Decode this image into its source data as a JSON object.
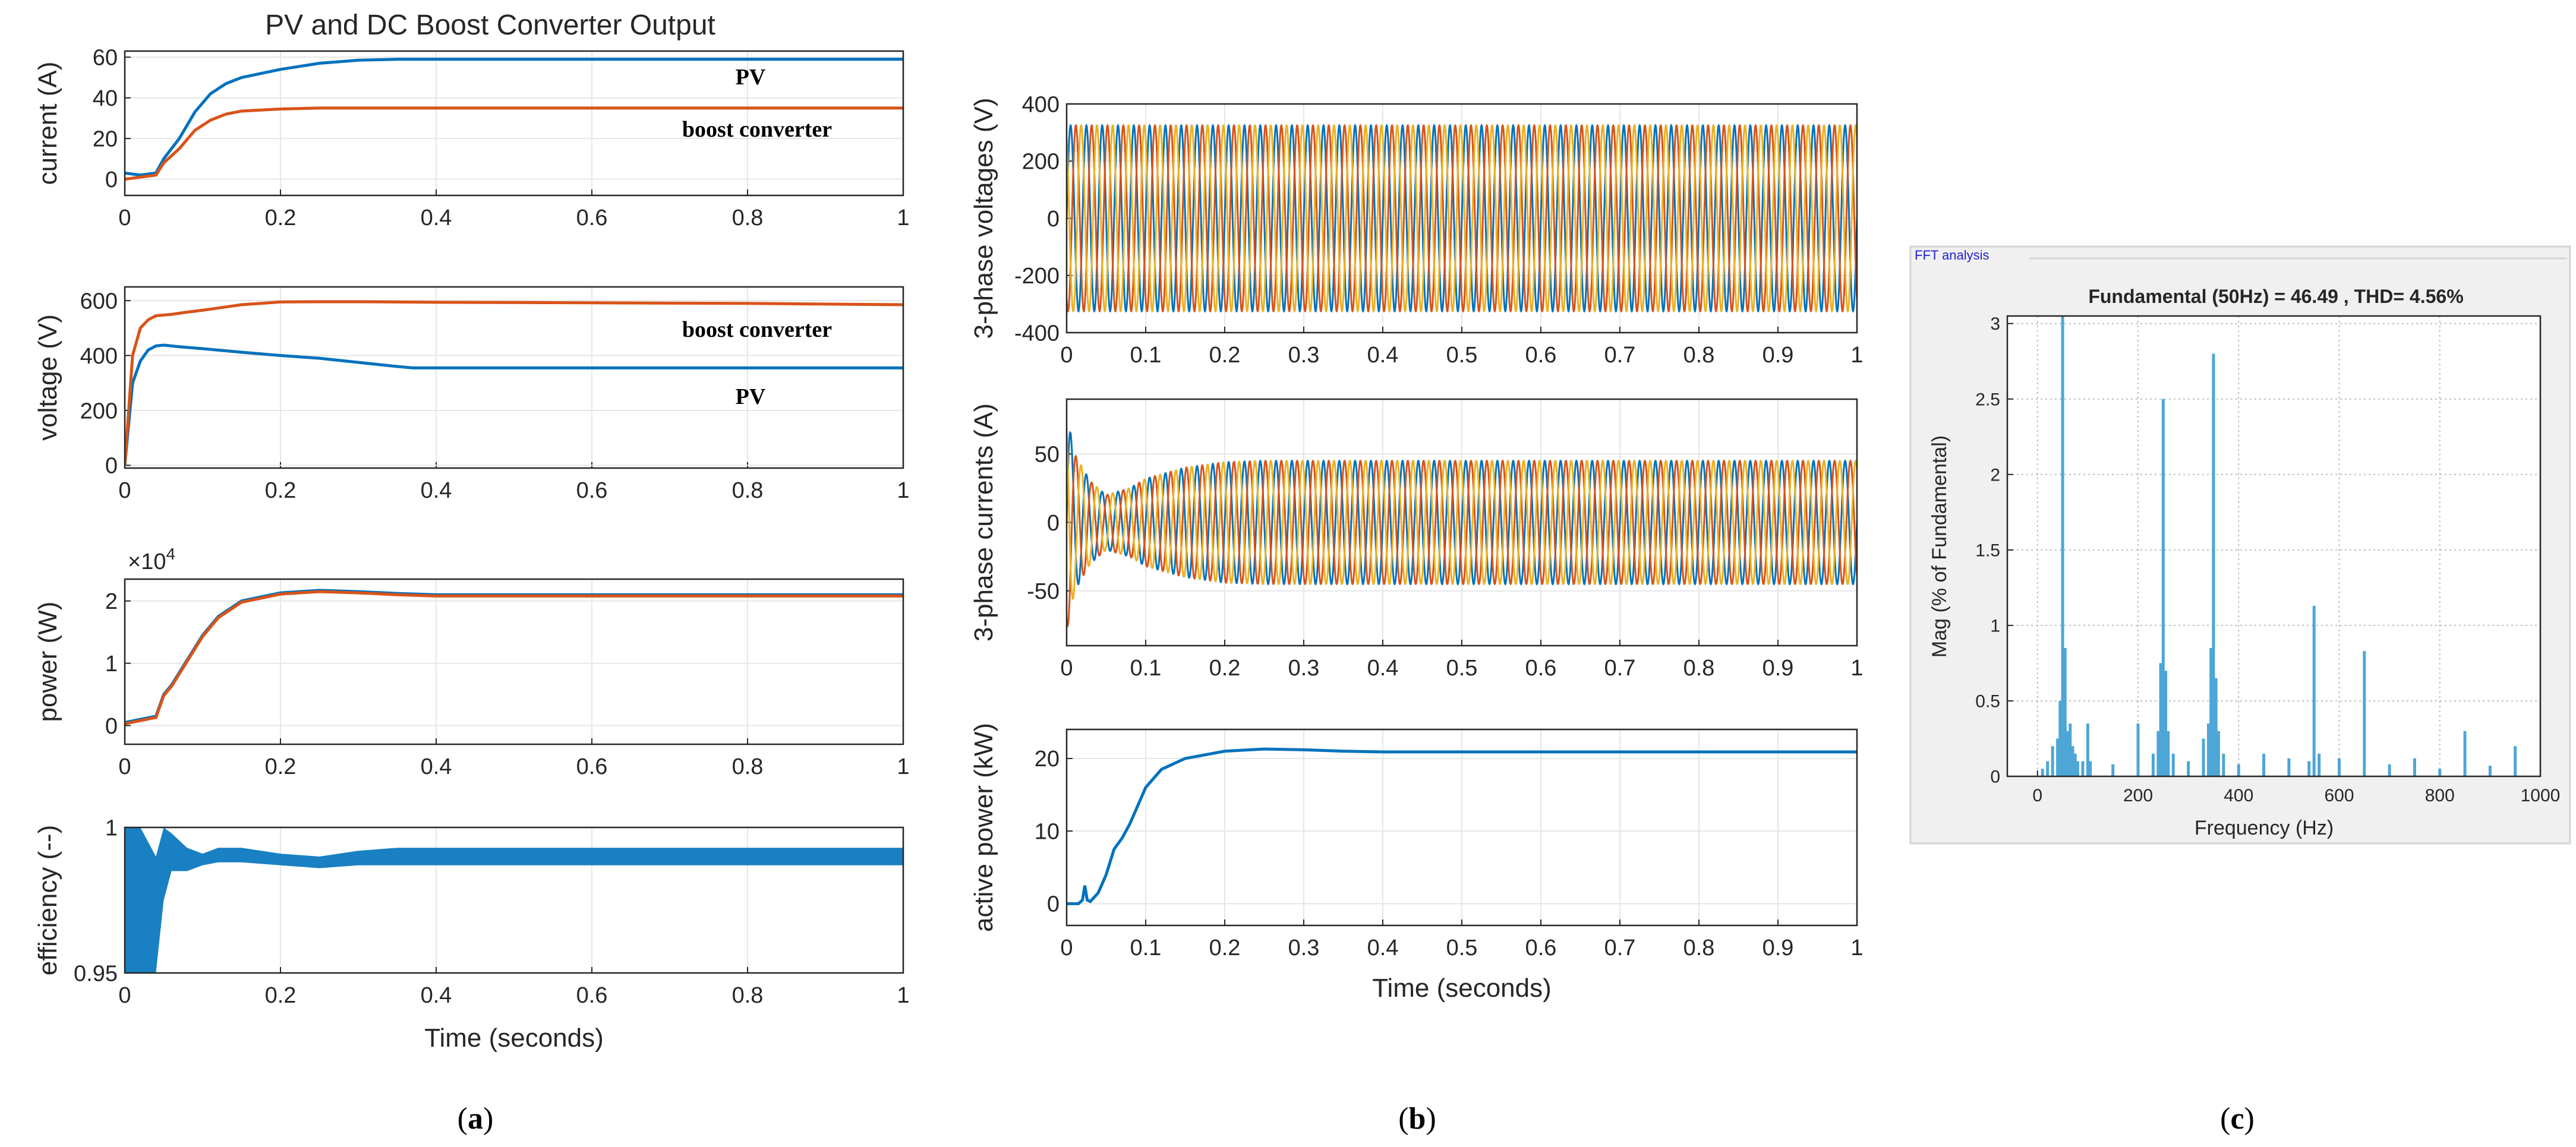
{
  "chart_data": [
    {
      "type": "line",
      "panel": "a",
      "panel_label_parts": [
        "(",
        "a",
        ")"
      ],
      "title": "PV and DC Boost Converter Output",
      "xlabel": "Time (seconds)",
      "subplots": [
        {
          "key": "a1",
          "ylabel": "current (A)",
          "xlim": [
            0,
            1
          ],
          "ylim": [
            -8,
            63
          ],
          "xticks": [
            0,
            0.2,
            0.4,
            0.6,
            0.8,
            1
          ],
          "xtick_labels": [
            "0",
            "0.2",
            "0.4",
            "0.6",
            "0.8",
            "1"
          ],
          "yticks": [
            0,
            20,
            40,
            60
          ],
          "ytick_labels": [
            "0",
            "20",
            "40",
            "60"
          ],
          "series": [
            {
              "name": "PV",
              "color": "#0072BD",
              "x": [
                0,
                0.02,
                0.04,
                0.05,
                0.07,
                0.09,
                0.11,
                0.13,
                0.15,
                0.2,
                0.25,
                0.3,
                0.35,
                0.4,
                0.6,
                0.8,
                1
              ],
              "y": [
                3,
                2,
                3,
                10,
                20,
                33,
                42,
                47,
                50,
                54,
                57,
                58.5,
                59,
                59,
                59,
                59,
                59
              ]
            },
            {
              "name": "boost converter",
              "color": "#D95319",
              "x": [
                0,
                0.02,
                0.04,
                0.05,
                0.07,
                0.09,
                0.11,
                0.13,
                0.15,
                0.2,
                0.25,
                0.3,
                0.35,
                0.4,
                0.6,
                0.8,
                1
              ],
              "y": [
                0,
                1,
                2,
                8,
                15,
                24,
                29,
                32,
                33.5,
                34.5,
                35,
                35,
                35,
                35,
                35,
                35,
                35
              ]
            }
          ],
          "annotations": [
            {
              "text": "PV",
              "x": 0.78,
              "y": 51
            },
            {
              "text": "boost converter",
              "x": 0.69,
              "y": 24
            }
          ]
        },
        {
          "key": "a2",
          "ylabel": "voltage (V)",
          "xlim": [
            0,
            1
          ],
          "ylim": [
            -10,
            650
          ],
          "xticks": [
            0,
            0.2,
            0.4,
            0.6,
            0.8,
            1
          ],
          "xtick_labels": [
            "0",
            "0.2",
            "0.4",
            "0.6",
            "0.8",
            "1"
          ],
          "yticks": [
            0,
            200,
            400,
            600
          ],
          "ytick_labels": [
            "0",
            "200",
            "400",
            "600"
          ],
          "series": [
            {
              "name": "PV",
              "color": "#0072BD",
              "x": [
                0,
                0.01,
                0.02,
                0.03,
                0.04,
                0.05,
                0.07,
                0.1,
                0.15,
                0.2,
                0.25,
                0.3,
                0.35,
                0.37,
                0.4,
                0.6,
                0.8,
                1
              ],
              "y": [
                0,
                300,
                380,
                420,
                435,
                438,
                432,
                425,
                412,
                400,
                390,
                375,
                360,
                355,
                355,
                355,
                355,
                355
              ]
            },
            {
              "name": "boost converter",
              "color": "#D95319",
              "x": [
                0,
                0.01,
                0.02,
                0.03,
                0.04,
                0.06,
                0.08,
                0.1,
                0.15,
                0.2,
                0.25,
                0.3,
                0.4,
                0.6,
                0.8,
                1
              ],
              "y": [
                0,
                400,
                500,
                530,
                545,
                550,
                558,
                565,
                585,
                595,
                596,
                596,
                594,
                592,
                590,
                585
              ]
            }
          ],
          "annotations": [
            {
              "text": "boost converter",
              "x": 0.69,
              "y": 500
            },
            {
              "text": "PV",
              "x": 0.78,
              "y": 270
            }
          ]
        },
        {
          "key": "a3",
          "ylabel": "power (W)",
          "multiplier": "×10",
          "multiplier_exp": "4",
          "xlim": [
            0,
            1
          ],
          "ylim": [
            -0.3,
            2.35
          ],
          "xticks": [
            0,
            0.2,
            0.4,
            0.6,
            0.8,
            1
          ],
          "xtick_labels": [
            "0",
            "0.2",
            "0.4",
            "0.6",
            "0.8",
            "1"
          ],
          "yticks": [
            0,
            1,
            2
          ],
          "ytick_labels": [
            "0",
            "1",
            "2"
          ],
          "series": [
            {
              "name": "PV",
              "color": "#0072BD",
              "x": [
                0,
                0.02,
                0.04,
                0.05,
                0.06,
                0.08,
                0.1,
                0.12,
                0.15,
                0.2,
                0.25,
                0.3,
                0.35,
                0.4,
                0.6,
                0.8,
                1
              ],
              "y": [
                0.05,
                0.1,
                0.15,
                0.5,
                0.65,
                1.05,
                1.45,
                1.75,
                2.0,
                2.13,
                2.17,
                2.15,
                2.12,
                2.1,
                2.1,
                2.1,
                2.1
              ]
            },
            {
              "name": "boost converter",
              "color": "#D95319",
              "x": [
                0,
                0.02,
                0.04,
                0.05,
                0.06,
                0.08,
                0.1,
                0.12,
                0.15,
                0.2,
                0.25,
                0.3,
                0.35,
                0.4,
                0.6,
                0.8,
                1
              ],
              "y": [
                0.03,
                0.08,
                0.13,
                0.48,
                0.63,
                1.03,
                1.43,
                1.73,
                1.98,
                2.11,
                2.15,
                2.13,
                2.1,
                2.08,
                2.08,
                2.08,
                2.08
              ]
            }
          ]
        },
        {
          "key": "a4",
          "ylabel": "efficiency (--)",
          "xlim": [
            0,
            1
          ],
          "ylim": [
            0.95,
            1
          ],
          "xticks": [
            0,
            0.2,
            0.4,
            0.6,
            0.8,
            1
          ],
          "xtick_labels": [
            "0",
            "0.2",
            "0.4",
            "0.6",
            "0.8",
            "1"
          ],
          "yticks": [
            0.95,
            1
          ],
          "ytick_labels": [
            "0.95",
            "1"
          ],
          "series": [
            {
              "name": "efficiency",
              "color": "#0072BD",
              "band": true,
              "x": [
                0,
                0.02,
                0.04,
                0.05,
                0.06,
                0.08,
                0.1,
                0.12,
                0.15,
                0.2,
                0.25,
                0.3,
                0.35,
                0.4,
                0.6,
                0.8,
                1
              ],
              "lower": [
                0.95,
                0.95,
                0.95,
                0.975,
                0.985,
                0.985,
                0.987,
                0.988,
                0.988,
                0.987,
                0.986,
                0.987,
                0.987,
                0.987,
                0.987,
                0.987,
                0.987
              ],
              "upper": [
                1.0,
                1.0,
                0.99,
                1.0,
                0.998,
                0.993,
                0.991,
                0.993,
                0.993,
                0.991,
                0.99,
                0.992,
                0.993,
                0.993,
                0.993,
                0.993,
                0.993
              ]
            }
          ]
        }
      ]
    },
    {
      "type": "line",
      "panel": "b",
      "panel_label_parts": [
        "(",
        "b",
        ")"
      ],
      "xlabel": "Time (seconds)",
      "subplots": [
        {
          "key": "b1",
          "ylabel": "3-phase voltages (V)",
          "xlim": [
            0,
            1
          ],
          "ylim": [
            -400,
            400
          ],
          "xticks": [
            0,
            0.1,
            0.2,
            0.3,
            0.4,
            0.5,
            0.6,
            0.7,
            0.8,
            0.9,
            1
          ],
          "xtick_labels": [
            "0",
            "0.1",
            "0.2",
            "0.3",
            "0.4",
            "0.5",
            "0.6",
            "0.7",
            "0.8",
            "0.9",
            "1"
          ],
          "yticks": [
            -400,
            -200,
            0,
            200,
            400
          ],
          "ytick_labels": [
            "-400",
            "-200",
            "0",
            "200",
            "400"
          ],
          "waveform": {
            "frequency_hz": 50,
            "phases": [
              "#0072BD",
              "#D95319",
              "#EDB120"
            ],
            "x": [
              0,
              1
            ],
            "amplitude": [
              325,
              325
            ]
          }
        },
        {
          "key": "b2",
          "ylabel": "3-phase currents (A)",
          "xlim": [
            0,
            1
          ],
          "ylim": [
            -90,
            90
          ],
          "xticks": [
            0,
            0.1,
            0.2,
            0.3,
            0.4,
            0.5,
            0.6,
            0.7,
            0.8,
            0.9,
            1
          ],
          "xtick_labels": [
            "0",
            "0.1",
            "0.2",
            "0.3",
            "0.4",
            "0.5",
            "0.6",
            "0.7",
            "0.8",
            "0.9",
            "1"
          ],
          "yticks": [
            -50,
            0,
            50
          ],
          "ytick_labels": [
            "-50",
            "0",
            "50"
          ],
          "waveform": {
            "frequency_hz": 50,
            "phases": [
              "#0072BD",
              "#D95319",
              "#EDB120"
            ],
            "x": [
              0,
              0.01,
              0.03,
              0.05,
              0.08,
              0.1,
              0.15,
              0.2,
              0.25,
              1
            ],
            "amplitude": [
              80,
              50,
              30,
              20,
              25,
              32,
              40,
              44,
              45,
              45
            ]
          }
        },
        {
          "key": "b3",
          "ylabel": "active power (kW)",
          "xlim": [
            0,
            1
          ],
          "ylim": [
            -3,
            24
          ],
          "xticks": [
            0,
            0.1,
            0.2,
            0.3,
            0.4,
            0.5,
            0.6,
            0.7,
            0.8,
            0.9,
            1
          ],
          "xtick_labels": [
            "0",
            "0.1",
            "0.2",
            "0.3",
            "0.4",
            "0.5",
            "0.6",
            "0.7",
            "0.8",
            "0.9",
            "1"
          ],
          "yticks": [
            0,
            10,
            20
          ],
          "ytick_labels": [
            "0",
            "10",
            "20"
          ],
          "series": [
            {
              "name": "active power",
              "color": "#0072BD",
              "x": [
                0,
                0.015,
                0.02,
                0.023,
                0.026,
                0.03,
                0.04,
                0.05,
                0.06,
                0.07,
                0.08,
                0.1,
                0.12,
                0.15,
                0.2,
                0.25,
                0.3,
                0.35,
                0.4,
                0.6,
                0.8,
                1
              ],
              "y": [
                0,
                0,
                0.5,
                2.5,
                0.5,
                0.3,
                1.5,
                4,
                7.5,
                9,
                11,
                16,
                18.5,
                20,
                21,
                21.3,
                21.2,
                21,
                20.9,
                20.9,
                20.9,
                20.9
              ]
            }
          ]
        }
      ]
    },
    {
      "type": "bar",
      "panel": "c",
      "panel_label_parts": [
        "(",
        "c",
        ")"
      ],
      "window_title": "FFT analysis",
      "title": "Fundamental (50Hz) = 46.49 , THD= 4.56%",
      "xlabel": "Frequency (Hz)",
      "ylabel": "Mag (% of Fundamental)",
      "xlim": [
        -60,
        1000
      ],
      "ylim": [
        0,
        3.05
      ],
      "xticks": [
        0,
        200,
        400,
        600,
        800,
        1000
      ],
      "xtick_labels": [
        "0",
        "200",
        "400",
        "600",
        "800",
        "1000"
      ],
      "yticks": [
        0,
        0.5,
        1,
        1.5,
        2,
        2.5,
        3
      ],
      "ytick_labels": [
        "0",
        "0.5",
        "1",
        "1.5",
        "2",
        "2.5",
        "3"
      ],
      "bar_color": "#4DA6D6",
      "harmonics_hz": [
        10,
        20,
        30,
        40,
        45,
        50,
        55,
        60,
        65,
        70,
        75,
        80,
        90,
        100,
        105,
        150,
        200,
        230,
        240,
        245,
        250,
        255,
        260,
        270,
        300,
        330,
        340,
        345,
        350,
        355,
        360,
        370,
        400,
        450,
        500,
        540,
        550,
        560,
        600,
        650,
        700,
        750,
        800,
        850,
        900,
        950
      ],
      "magnitudes": [
        0.05,
        0.1,
        0.2,
        0.25,
        0.5,
        3.05,
        0.85,
        0.3,
        0.35,
        0.2,
        0.15,
        0.1,
        0.1,
        0.35,
        0.1,
        0.08,
        0.35,
        0.15,
        0.3,
        0.75,
        2.5,
        0.7,
        0.3,
        0.15,
        0.1,
        0.25,
        0.35,
        0.85,
        2.8,
        0.65,
        0.3,
        0.15,
        0.08,
        0.15,
        0.12,
        0.1,
        1.13,
        0.15,
        0.12,
        0.83,
        0.08,
        0.12,
        0.05,
        0.3,
        0.07,
        0.2
      ]
    }
  ]
}
